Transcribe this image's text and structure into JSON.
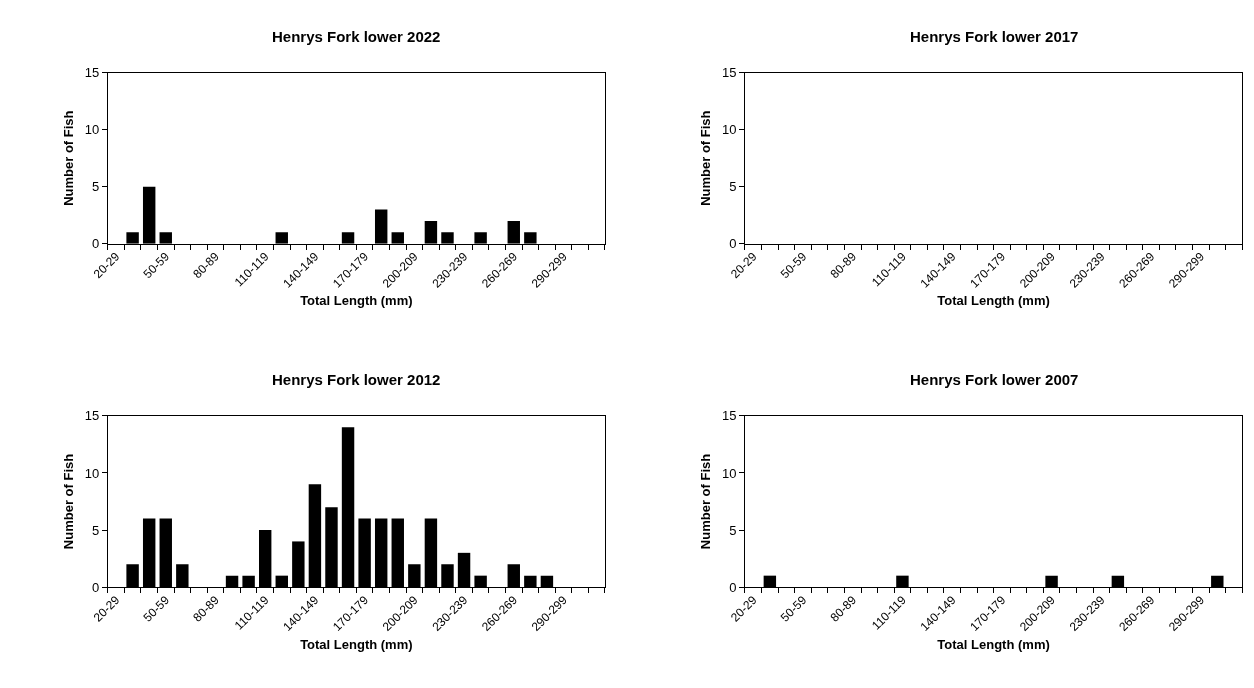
{
  "chart_data": [
    {
      "type": "bar",
      "title": "Henrys Fork lower 2022",
      "xlabel": "Total Length (mm)",
      "ylabel": "Number of Fish",
      "categories": [
        "20-29",
        null,
        null,
        "50-59",
        null,
        null,
        "80-89",
        null,
        null,
        "110-119",
        null,
        null,
        "140-149",
        null,
        null,
        "170-179",
        null,
        null,
        "200-209",
        null,
        null,
        "230-239",
        null,
        null,
        "260-269",
        null,
        null,
        "290-299",
        null,
        null
      ],
      "values": [
        0,
        1,
        5,
        1,
        0,
        0,
        0,
        0,
        0,
        0,
        1,
        0,
        0,
        0,
        1,
        0,
        3,
        1,
        0,
        2,
        1,
        0,
        1,
        0,
        2,
        1,
        0,
        0,
        0,
        0
      ],
      "color": "#000000",
      "ylim": [
        0,
        15
      ],
      "yticks": [
        0,
        5,
        10,
        15
      ]
    },
    {
      "type": "bar",
      "title": "Henrys Fork lower 2017",
      "xlabel": "Total Length (mm)",
      "ylabel": "Number of Fish",
      "categories": [
        "20-29",
        null,
        null,
        "50-59",
        null,
        null,
        "80-89",
        null,
        null,
        "110-119",
        null,
        null,
        "140-149",
        null,
        null,
        "170-179",
        null,
        null,
        "200-209",
        null,
        null,
        "230-239",
        null,
        null,
        "260-269",
        null,
        null,
        "290-299",
        null,
        null
      ],
      "values": [
        0,
        0,
        0,
        0,
        0,
        0,
        0,
        0,
        0,
        0,
        0,
        0,
        0,
        0,
        0,
        0,
        0,
        0,
        0,
        0,
        0,
        0,
        0,
        0,
        0,
        0,
        0,
        0,
        0,
        0
      ],
      "color": "#000000",
      "ylim": [
        0,
        15
      ],
      "yticks": [
        0,
        5,
        10,
        15
      ]
    },
    {
      "type": "bar",
      "title": "Henrys Fork lower 2012",
      "xlabel": "Total Length (mm)",
      "ylabel": "Number of Fish",
      "categories": [
        "20-29",
        null,
        null,
        "50-59",
        null,
        null,
        "80-89",
        null,
        null,
        "110-119",
        null,
        null,
        "140-149",
        null,
        null,
        "170-179",
        null,
        null,
        "200-209",
        null,
        null,
        "230-239",
        null,
        null,
        "260-269",
        null,
        null,
        "290-299",
        null,
        null
      ],
      "values": [
        0,
        2,
        6,
        6,
        2,
        0,
        0,
        1,
        1,
        5,
        1,
        4,
        9,
        7,
        14,
        6,
        6,
        6,
        2,
        6,
        2,
        3,
        1,
        0,
        2,
        1,
        1,
        0,
        0,
        0
      ],
      "color": "#000000",
      "ylim": [
        0,
        15
      ],
      "yticks": [
        0,
        5,
        10,
        15
      ]
    },
    {
      "type": "bar",
      "title": "Henrys Fork lower 2007",
      "xlabel": "Total Length (mm)",
      "ylabel": "Number of Fish",
      "categories": [
        "20-29",
        null,
        null,
        "50-59",
        null,
        null,
        "80-89",
        null,
        null,
        "110-119",
        null,
        null,
        "140-149",
        null,
        null,
        "170-179",
        null,
        null,
        "200-209",
        null,
        null,
        "230-239",
        null,
        null,
        "260-269",
        null,
        null,
        "290-299",
        null,
        null
      ],
      "values": [
        0,
        1,
        0,
        0,
        0,
        0,
        0,
        0,
        0,
        1,
        0,
        0,
        0,
        0,
        0,
        0,
        0,
        0,
        1,
        0,
        0,
        0,
        1,
        0,
        0,
        0,
        0,
        0,
        1,
        0
      ],
      "color": "#000000",
      "ylim": [
        0,
        15
      ],
      "yticks": [
        0,
        5,
        10,
        15
      ]
    }
  ]
}
